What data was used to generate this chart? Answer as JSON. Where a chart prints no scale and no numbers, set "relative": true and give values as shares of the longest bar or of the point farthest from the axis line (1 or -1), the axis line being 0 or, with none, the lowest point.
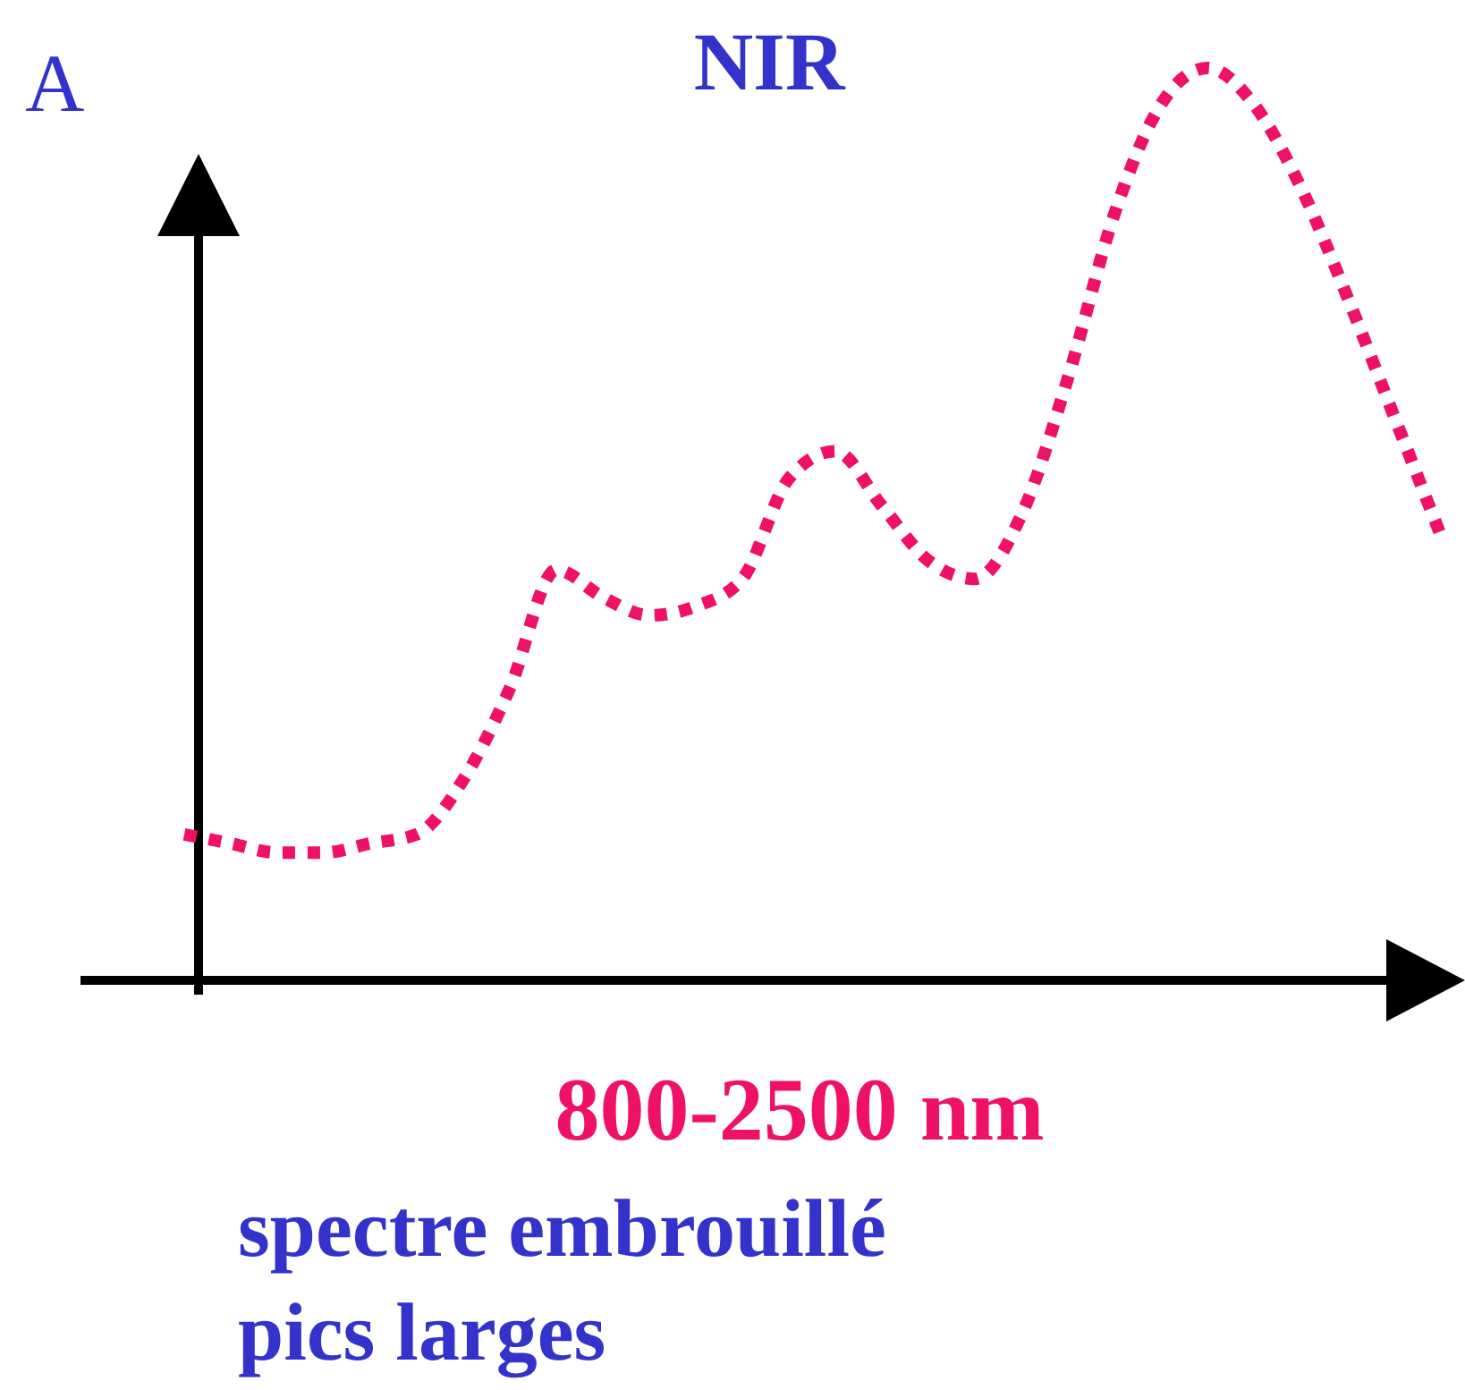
{
  "chart_data": {
    "type": "line",
    "title": "NIR",
    "ylabel": "A",
    "xlabel": "800-2500 nm",
    "annotations": [
      "spectre embrouillé",
      "pics larges"
    ],
    "relative": true,
    "categories": [
      null,
      null,
      null,
      null,
      null,
      null,
      null,
      null,
      null,
      null,
      null,
      null,
      null,
      null,
      null,
      null,
      null,
      null,
      null,
      null,
      null,
      null,
      null,
      null,
      null,
      null,
      null,
      null
    ],
    "series": [
      {
        "color": "#ee1166",
        "values": [
          0.16,
          0.15,
          0.14,
          0.14,
          0.15,
          0.16,
          0.22,
          0.32,
          0.45,
          0.42,
          0.4,
          0.41,
          0.44,
          0.55,
          0.58,
          0.52,
          0.46,
          0.44,
          0.51,
          0.66,
          0.84,
          0.96,
          1,
          0.96,
          0.87,
          0.75,
          0.62,
          0.49
        ]
      }
    ],
    "marker": "none",
    "line_style": "dotted",
    "tick_labels": false
  }
}
